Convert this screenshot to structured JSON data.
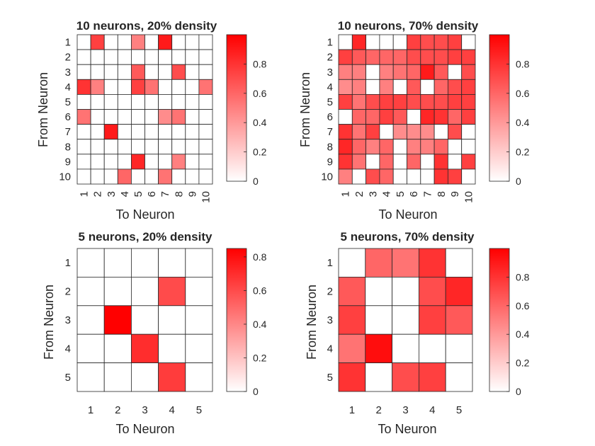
{
  "colormap": {
    "low": "#ffffff",
    "high": "#ff0000",
    "grid": "#262626"
  },
  "chart_data": [
    {
      "type": "heatmap",
      "title": "10 neurons, 20% density",
      "xlabel": "To Neuron",
      "ylabel": "From Neuron",
      "x_ticks": [
        "1",
        "2",
        "3",
        "4",
        "5",
        "6",
        "7",
        "8",
        "9",
        "10"
      ],
      "y_ticks": [
        "1",
        "2",
        "3",
        "4",
        "5",
        "6",
        "7",
        "8",
        "9",
        "10"
      ],
      "clim": [
        0,
        1
      ],
      "colorbar_ticks": [
        "0",
        "0.2",
        "0.4",
        "0.6",
        "0.8"
      ],
      "values": [
        [
          0,
          0.75,
          0,
          0,
          0.5,
          0,
          0.9,
          0,
          0,
          0
        ],
        [
          0,
          0,
          0,
          0,
          0,
          0,
          0,
          0,
          0,
          0
        ],
        [
          0,
          0,
          0,
          0,
          0.65,
          0,
          0,
          0.7,
          0,
          0
        ],
        [
          0.8,
          0.5,
          0,
          0,
          0.75,
          0.55,
          0,
          0,
          0,
          0.55
        ],
        [
          0,
          0,
          0,
          0,
          0,
          0,
          0,
          0,
          0,
          0
        ],
        [
          0.55,
          0,
          0,
          0,
          0,
          0,
          0.45,
          0.55,
          0,
          0
        ],
        [
          0,
          0,
          0.9,
          0,
          0,
          0,
          0,
          0,
          0,
          0
        ],
        [
          0,
          0,
          0,
          0,
          0,
          0,
          0,
          0,
          0,
          0
        ],
        [
          0,
          0,
          0,
          0,
          0.85,
          0,
          0,
          0.5,
          0,
          0
        ],
        [
          0,
          0,
          0,
          0.6,
          0,
          0,
          0.55,
          0,
          0,
          0
        ]
      ]
    },
    {
      "type": "heatmap",
      "title": "10 neurons, 70% density",
      "xlabel": "To Neuron",
      "ylabel": "From Neuron",
      "x_ticks": [
        "1",
        "2",
        "3",
        "4",
        "5",
        "6",
        "7",
        "8",
        "9",
        "10"
      ],
      "y_ticks": [
        "1",
        "2",
        "3",
        "4",
        "5",
        "6",
        "7",
        "8",
        "9",
        "10"
      ],
      "clim": [
        0,
        1
      ],
      "colorbar_ticks": [
        "0",
        "0.2",
        "0.4",
        "0.6",
        "0.8"
      ],
      "values": [
        [
          0,
          0.85,
          0,
          0,
          0,
          0.75,
          0.7,
          0.7,
          0.75,
          0
        ],
        [
          0.75,
          0.65,
          0.6,
          0.6,
          0.6,
          0.7,
          0.7,
          0.7,
          0.75,
          0.75
        ],
        [
          0.5,
          0.5,
          0,
          0.5,
          0.55,
          0.6,
          0.9,
          0.65,
          0,
          0.7
        ],
        [
          0.45,
          0.5,
          0,
          0.5,
          0,
          0.65,
          0,
          0.6,
          0.7,
          0.75
        ],
        [
          0.75,
          0.55,
          0.7,
          0.75,
          0.75,
          0.7,
          0.7,
          0.7,
          0.75,
          0.75
        ],
        [
          0,
          0.6,
          0.6,
          0.75,
          0.65,
          0,
          0.85,
          0.8,
          0.6,
          0.75
        ],
        [
          0.8,
          0.55,
          0.75,
          0,
          0.45,
          0.45,
          0.45,
          0,
          0.7,
          0
        ],
        [
          0.85,
          0.6,
          0.5,
          0.6,
          0,
          0.5,
          0.5,
          0.6,
          0,
          0
        ],
        [
          0.8,
          0.55,
          0,
          0.6,
          0,
          0.6,
          0,
          0.8,
          0,
          0.75
        ],
        [
          0.5,
          0,
          0.7,
          0.6,
          0,
          0,
          0,
          0.8,
          0.75,
          0
        ]
      ]
    },
    {
      "type": "heatmap",
      "title": "5 neurons, 20% density",
      "xlabel": "To Neuron",
      "ylabel": "From Neuron",
      "x_ticks": [
        "1",
        "2",
        "3",
        "4",
        "5"
      ],
      "y_ticks": [
        "1",
        "2",
        "3",
        "4",
        "5"
      ],
      "clim": [
        0,
        0.85
      ],
      "colorbar_ticks": [
        "0",
        "0.2",
        "0.4",
        "0.6",
        "0.8"
      ],
      "values": [
        [
          0,
          0,
          0,
          0,
          0
        ],
        [
          0,
          0,
          0,
          0.6,
          0
        ],
        [
          0,
          0.85,
          0,
          0,
          0
        ],
        [
          0,
          0,
          0.7,
          0,
          0
        ],
        [
          0,
          0,
          0,
          0.65,
          0
        ]
      ]
    },
    {
      "type": "heatmap",
      "title": "5 neurons, 70% density",
      "xlabel": "To Neuron",
      "ylabel": "From Neuron",
      "x_ticks": [
        "1",
        "2",
        "3",
        "4",
        "5"
      ],
      "y_ticks": [
        "1",
        "2",
        "3",
        "4",
        "5"
      ],
      "clim": [
        0,
        1
      ],
      "colorbar_ticks": [
        "0",
        "0.2",
        "0.4",
        "0.6",
        "0.8"
      ],
      "values": [
        [
          0,
          0.6,
          0.55,
          0.8,
          0
        ],
        [
          0.65,
          0,
          0,
          0.7,
          0.85
        ],
        [
          0.75,
          0,
          0,
          0.75,
          0.65
        ],
        [
          0.55,
          0.95,
          0,
          0,
          0
        ],
        [
          0.8,
          0,
          0.7,
          0.75,
          0
        ]
      ]
    }
  ]
}
